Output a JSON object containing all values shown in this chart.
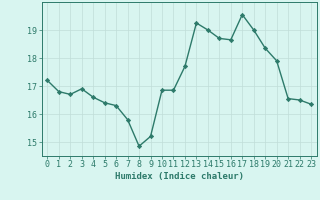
{
  "x": [
    0,
    1,
    2,
    3,
    4,
    5,
    6,
    7,
    8,
    9,
    10,
    11,
    12,
    13,
    14,
    15,
    16,
    17,
    18,
    19,
    20,
    21,
    22,
    23
  ],
  "y": [
    17.2,
    16.8,
    16.7,
    16.9,
    16.6,
    16.4,
    16.3,
    15.8,
    14.85,
    15.2,
    16.85,
    16.85,
    17.7,
    19.25,
    19.0,
    18.7,
    18.65,
    19.55,
    19.0,
    18.35,
    17.9,
    16.55,
    16.5,
    16.35
  ],
  "line_color": "#2d7a6a",
  "marker": "D",
  "marker_size": 2.2,
  "bg_color": "#d8f5f0",
  "grid_color": "#c0ddd8",
  "axis_color": "#2d7a6a",
  "xlabel": "Humidex (Indice chaleur)",
  "xlim": [
    -0.5,
    23.5
  ],
  "ylim": [
    14.5,
    20.0
  ],
  "yticks": [
    15,
    16,
    17,
    18,
    19
  ],
  "xticks": [
    0,
    1,
    2,
    3,
    4,
    5,
    6,
    7,
    8,
    9,
    10,
    11,
    12,
    13,
    14,
    15,
    16,
    17,
    18,
    19,
    20,
    21,
    22,
    23
  ],
  "xlabel_fontsize": 6.5,
  "tick_fontsize": 6.0,
  "line_width": 1.0
}
